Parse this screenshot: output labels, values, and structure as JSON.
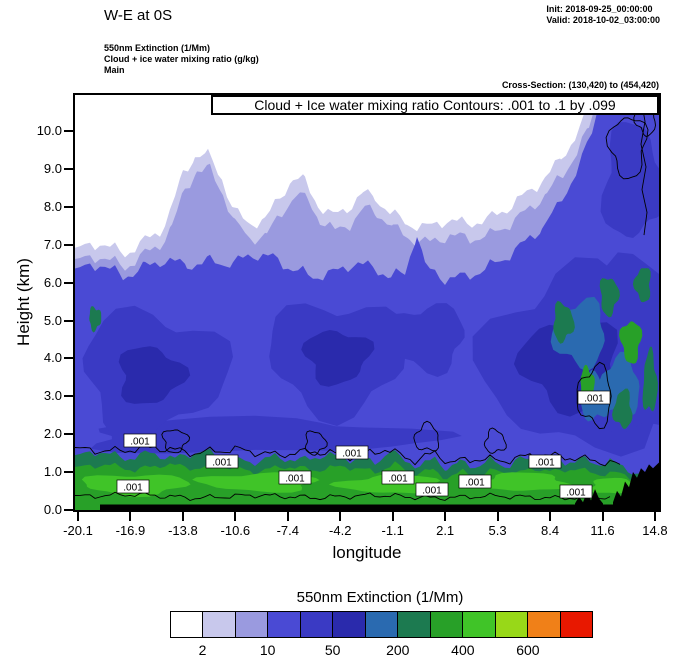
{
  "header": {
    "title": "W-E at 0S",
    "init_label": "Init: 2018-09-25_00:00:00",
    "valid_label": "Valid: 2018-10-02_03:00:00",
    "var_line1": "550nm Extinction  (1/Mm)",
    "var_line2": "Cloud + ice water mixing ratio  (g/kg)",
    "var_line3": "Main",
    "cross_section": "Cross-Section: (130,420) to (454,420)"
  },
  "plot": {
    "contour_box_title": "Cloud + Ice water mixing ratio Contours: .001 to .1 by .099",
    "xlabel": "longitude",
    "ylabel": "Height (km)",
    "x_tick_labels": [
      "-20.1",
      "-16.9",
      "-13.8",
      "-10.6",
      "-7.4",
      "-4.2",
      "-1.1",
      "2.1",
      "5.3",
      "8.4",
      "11.6",
      "14.8"
    ],
    "y_tick_labels": [
      "0.0",
      "1.0",
      "2.0",
      "3.0",
      "4.0",
      "5.0",
      "6.0",
      "7.0",
      "8.0",
      "9.0",
      "10.0"
    ],
    "contour_line_label": ".001"
  },
  "legend": {
    "title": "550nm Extinction  (1/Mm)",
    "tick_labels": [
      "2",
      "10",
      "50",
      "200",
      "400",
      "600"
    ],
    "colors": [
      "#FFFFFF",
      "#C8C8EC",
      "#9A9ADF",
      "#4A4AD4",
      "#3A3AC4",
      "#2A2AAC",
      "#2A6AB0",
      "#1C7A50",
      "#28A028",
      "#40C428",
      "#98D818",
      "#F08018",
      "#E81800"
    ]
  },
  "chart_data": {
    "type": "heatmap",
    "subtype": "filled-contour vertical cross-section with line-contour overlay",
    "title": "W-E at 0S",
    "init_time": "2018-09-25_00:00:00",
    "valid_time": "2018-10-02_03:00:00",
    "cross_section": "(130,420) to (454,420)",
    "fill_variable": "550nm Extinction (1/Mm)",
    "fill_labeled_levels": [
      2,
      10,
      50,
      200,
      400,
      600
    ],
    "fill_palette_order": "white -> lavender/violet -> blue -> teal -> green -> yellow-green -> orange -> red",
    "overlay_contour_variable": "Cloud + Ice water mixing ratio (g/kg)",
    "overlay_contour_levels": [
      0.001,
      0.1
    ],
    "overlay_contour_interval": 0.099,
    "xlabel": "longitude",
    "ylabel": "Height (km)",
    "xlim": [
      -20.1,
      14.8
    ],
    "ylim": [
      0,
      10.9
    ],
    "x_ticks": [
      -20.1,
      -16.9,
      -13.8,
      -10.6,
      -7.4,
      -4.2,
      -1.1,
      2.1,
      5.3,
      8.4,
      11.6,
      14.8
    ],
    "y_ticks": [
      0,
      1,
      2,
      3,
      4,
      5,
      6,
      7,
      8,
      9,
      10
    ],
    "field_summary": [
      {
        "height_km": "8.0-10.9",
        "extinction_1_per_Mm": "< 2 (white/clear) with 2-10 lavender patches; 10-300 column near longitude 12-14.8 reaching plot top"
      },
      {
        "height_km": "6.5-8.0",
        "extinction_1_per_Mm": "2-10 and 10-50 (lavender/periwinkle) band across the whole section, bumps to ~9 km near longitudes -14 and -8, rising eastward"
      },
      {
        "height_km": "1.5-6.5",
        "extinction_1_per_Mm": "50-200 (blue) with 200-300 (darker blue) cores near longitudes -18..-14 and -10..-5 at 2.5-5.5 km, and a broad 200-400 mass east of longitude 2 with small 400-600 green pockets"
      },
      {
        "height_km": "0.3-1.5",
        "extinction_1_per_Mm": "200-600 (greens) boundary-layer band spanning nearly the whole section, brightest 400-600 near 0.5-0.9 km"
      },
      {
        "height_km": "0-1.2 east of longitude ~11.6",
        "extinction_1_per_Mm": "terrain silhouette (black fill)"
      }
    ],
    "cloud_contour_locations": ".001 g/kg contour labels along the 0.5-1.5 km boundary-layer band, near 3 km on the east side, and thin contour loops near 9.5-10.5 km at the east edge"
  }
}
